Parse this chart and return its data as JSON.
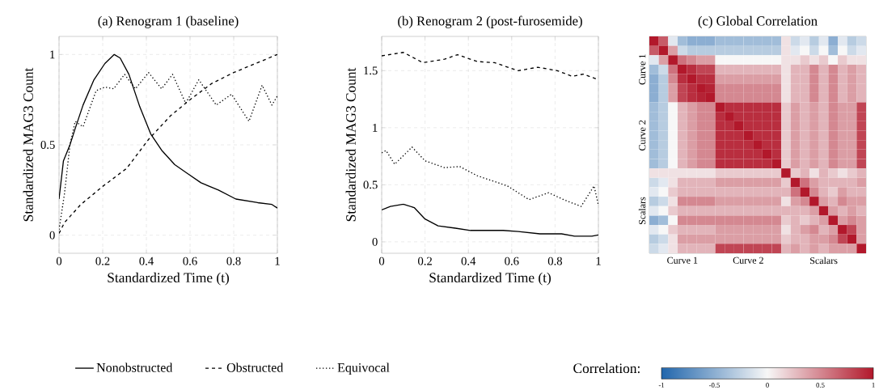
{
  "chart_data": [
    {
      "type": "line",
      "title": "(a) Renogram 1 (baseline)",
      "xlabel": "Standardized Time (t)",
      "ylabel": "Standardized MAG3 Count",
      "xlim": [
        0,
        1
      ],
      "ylim": [
        -0.1,
        1.1
      ],
      "xticks": [
        0,
        0.2,
        0.4,
        0.6,
        0.8,
        1
      ],
      "yticks": [
        0,
        0.5,
        1
      ],
      "grid": true,
      "legend": "bottom",
      "marker": "none",
      "series": [
        {
          "name": "Nonobstructed",
          "color": "#000000",
          "line_style": "solid",
          "x": [
            0,
            0.02,
            0.05,
            0.074,
            0.11,
            0.16,
            0.21,
            0.253,
            0.28,
            0.32,
            0.37,
            0.42,
            0.47,
            0.53,
            0.59,
            0.65,
            0.73,
            0.81,
            0.91,
            0.975,
            1
          ],
          "values": [
            0.2,
            0.41,
            0.5,
            0.59,
            0.72,
            0.86,
            0.95,
            1.0,
            0.98,
            0.89,
            0.71,
            0.56,
            0.47,
            0.39,
            0.34,
            0.29,
            0.25,
            0.2,
            0.18,
            0.17,
            0.15
          ]
        },
        {
          "name": "Obstructed",
          "color": "#000000",
          "line_style": "dashed",
          "x": [
            0,
            0.025,
            0.1,
            0.2,
            0.31,
            0.41,
            0.51,
            0.6,
            0.7,
            0.8,
            0.9,
            1
          ],
          "values": [
            0.01,
            0.07,
            0.17,
            0.27,
            0.37,
            0.53,
            0.66,
            0.75,
            0.84,
            0.9,
            0.95,
            1.0
          ]
        },
        {
          "name": "Equivocal",
          "color": "#000000",
          "line_style": "dotted",
          "x": [
            0,
            0.025,
            0.05,
            0.074,
            0.11,
            0.17,
            0.21,
            0.25,
            0.3,
            0.35,
            0.41,
            0.47,
            0.52,
            0.58,
            0.64,
            0.72,
            0.79,
            0.87,
            0.93,
            0.975,
            1
          ],
          "values": [
            0.03,
            0.23,
            0.5,
            0.63,
            0.6,
            0.8,
            0.82,
            0.81,
            0.89,
            0.81,
            0.9,
            0.81,
            0.89,
            0.73,
            0.86,
            0.72,
            0.78,
            0.63,
            0.83,
            0.72,
            0.77
          ]
        }
      ]
    },
    {
      "type": "line",
      "title": "(b) Renogram 2 (post-furosemide)",
      "xlabel": "Standardized Time (t)",
      "ylabel": "Standardized MAG3 Count",
      "xlim": [
        0,
        1
      ],
      "ylim": [
        -0.1,
        1.8
      ],
      "xticks": [
        0,
        0.2,
        0.4,
        0.6,
        0.8,
        1
      ],
      "yticks": [
        0,
        0.5,
        1,
        1.5
      ],
      "grid": true,
      "marker": "none",
      "series": [
        {
          "color": "#000000",
          "line_style": "solid",
          "x": [
            0,
            0.04,
            0.1,
            0.15,
            0.2,
            0.26,
            0.34,
            0.41,
            0.48,
            0.56,
            0.63,
            0.73,
            0.83,
            0.89,
            0.97,
            1
          ],
          "values": [
            0.28,
            0.31,
            0.33,
            0.3,
            0.2,
            0.14,
            0.12,
            0.1,
            0.1,
            0.1,
            0.09,
            0.07,
            0.07,
            0.05,
            0.05,
            0.06
          ]
        },
        {
          "color": "#000000",
          "line_style": "dashed",
          "x": [
            0,
            0.1,
            0.19,
            0.29,
            0.35,
            0.44,
            0.52,
            0.63,
            0.72,
            0.81,
            0.88,
            0.93,
            1
          ],
          "values": [
            1.63,
            1.66,
            1.57,
            1.6,
            1.64,
            1.58,
            1.57,
            1.5,
            1.53,
            1.5,
            1.45,
            1.47,
            1.42
          ]
        },
        {
          "color": "#000000",
          "line_style": "dotted",
          "x": [
            0,
            0.02,
            0.06,
            0.14,
            0.2,
            0.29,
            0.36,
            0.44,
            0.58,
            0.68,
            0.77,
            0.84,
            0.92,
            0.98,
            1
          ],
          "values": [
            0.78,
            0.8,
            0.68,
            0.83,
            0.71,
            0.65,
            0.66,
            0.58,
            0.49,
            0.37,
            0.43,
            0.37,
            0.31,
            0.49,
            0.32
          ]
        }
      ]
    },
    {
      "type": "heatmap",
      "title": "(c) Global Correlation",
      "clabel": "Correlation:",
      "clim": [
        -1,
        1
      ],
      "cticks": [
        -1,
        -0.5,
        0,
        0.5,
        1
      ],
      "categories": [
        null,
        null,
        null,
        "Curve 1",
        null,
        null,
        null,
        null,
        null,
        null,
        "Curve 2",
        null,
        null,
        null,
        null,
        null,
        null,
        null,
        "Scalars",
        null,
        null,
        null,
        null
      ],
      "y_categories": [
        null,
        null,
        null,
        "Curve 1",
        null,
        null,
        null,
        null,
        null,
        null,
        "Curve 2",
        null,
        null,
        null,
        null,
        null,
        null,
        null,
        "Scalars",
        null,
        null,
        null,
        null
      ],
      "cells": [
        [
          1,
          0.7,
          -0.1,
          -0.4,
          -0.5,
          -0.5,
          -0.5,
          -0.4,
          -0.4,
          -0.4,
          -0.4,
          -0.4,
          -0.4,
          -0.4,
          0.1,
          -0.2,
          -0.1,
          -0.3,
          -0.1,
          -0.5,
          -0.1,
          -0.3,
          -0.2
        ],
        [
          0.7,
          1,
          0.4,
          -0.2,
          -0.3,
          -0.3,
          -0.3,
          -0.3,
          -0.3,
          -0.3,
          -0.3,
          -0.3,
          -0.3,
          -0.3,
          0.1,
          -0.1,
          0,
          -0.2,
          0,
          -0.4,
          0,
          -0.2,
          -0.1
        ],
        [
          -0.1,
          0.4,
          1,
          0.6,
          0.5,
          0.4,
          0.4,
          0,
          0,
          0,
          0,
          0,
          0,
          0,
          0.1,
          0.1,
          0.2,
          0.1,
          0.2,
          0,
          0.2,
          0.1,
          0.1
        ],
        [
          -0.4,
          -0.2,
          0.6,
          1,
          0.9,
          0.8,
          0.8,
          0.3,
          0.3,
          0.3,
          0.3,
          0.3,
          0.3,
          0.3,
          0.1,
          0.3,
          0.3,
          0.5,
          0.3,
          0.5,
          0.3,
          0.4,
          0.3
        ],
        [
          -0.5,
          -0.3,
          0.5,
          0.9,
          1,
          0.9,
          0.9,
          0.4,
          0.4,
          0.4,
          0.4,
          0.4,
          0.4,
          0.4,
          0.1,
          0.3,
          0.3,
          0.5,
          0.3,
          0.5,
          0.3,
          0.4,
          0.3
        ],
        [
          -0.5,
          -0.3,
          0.4,
          0.8,
          0.9,
          1,
          0.95,
          0.5,
          0.5,
          0.5,
          0.5,
          0.5,
          0.5,
          0.5,
          0.1,
          0.3,
          0.3,
          0.5,
          0.3,
          0.5,
          0.3,
          0.4,
          0.3
        ],
        [
          -0.5,
          -0.3,
          0.4,
          0.8,
          0.9,
          0.95,
          1,
          0.5,
          0.5,
          0.5,
          0.5,
          0.5,
          0.5,
          0.5,
          0.1,
          0.3,
          0.3,
          0.5,
          0.3,
          0.5,
          0.3,
          0.4,
          0.3
        ],
        [
          -0.4,
          -0.3,
          0,
          0.3,
          0.4,
          0.5,
          0.5,
          1,
          0.9,
          0.9,
          0.9,
          0.9,
          0.9,
          0.9,
          0.2,
          0.4,
          0.3,
          0.4,
          0.3,
          0.5,
          0.4,
          0.4,
          0.8
        ],
        [
          -0.4,
          -0.3,
          0,
          0.3,
          0.4,
          0.5,
          0.5,
          0.9,
          1,
          0.9,
          0.9,
          0.9,
          0.9,
          0.9,
          0.2,
          0.4,
          0.3,
          0.4,
          0.3,
          0.5,
          0.4,
          0.4,
          0.8
        ],
        [
          -0.4,
          -0.3,
          0,
          0.3,
          0.4,
          0.5,
          0.5,
          0.9,
          0.9,
          1,
          0.9,
          0.9,
          0.9,
          0.9,
          0.2,
          0.4,
          0.3,
          0.4,
          0.3,
          0.5,
          0.4,
          0.4,
          0.8
        ],
        [
          -0.4,
          -0.3,
          0,
          0.3,
          0.4,
          0.5,
          0.5,
          0.9,
          0.9,
          0.9,
          1,
          0.9,
          0.9,
          0.9,
          0.2,
          0.4,
          0.3,
          0.4,
          0.3,
          0.5,
          0.4,
          0.4,
          0.8
        ],
        [
          -0.4,
          -0.3,
          0,
          0.3,
          0.4,
          0.5,
          0.5,
          0.9,
          0.9,
          0.9,
          0.9,
          1,
          0.9,
          0.9,
          0.2,
          0.4,
          0.3,
          0.4,
          0.3,
          0.5,
          0.4,
          0.4,
          0.8
        ],
        [
          -0.4,
          -0.3,
          0,
          0.3,
          0.4,
          0.5,
          0.5,
          0.9,
          0.9,
          0.9,
          0.9,
          0.9,
          1,
          0.9,
          0.2,
          0.4,
          0.3,
          0.4,
          0.3,
          0.5,
          0.4,
          0.4,
          0.8
        ],
        [
          -0.4,
          -0.3,
          0,
          0.3,
          0.4,
          0.5,
          0.5,
          0.9,
          0.9,
          0.9,
          0.9,
          0.9,
          0.9,
          1,
          0.2,
          0.4,
          0.3,
          0.4,
          0.3,
          0.5,
          0.4,
          0.4,
          0.8
        ],
        [
          0.1,
          0.1,
          0.1,
          0.1,
          0.1,
          0.1,
          0.1,
          0.2,
          0.2,
          0.2,
          0.2,
          0.2,
          0.2,
          0.2,
          1,
          0.2,
          0.3,
          0.1,
          0.3,
          0.2,
          0.1,
          0.2,
          0.3
        ],
        [
          -0.2,
          -0.1,
          0.1,
          0.3,
          0.3,
          0.3,
          0.3,
          0.4,
          0.4,
          0.4,
          0.4,
          0.4,
          0.4,
          0.4,
          0.2,
          1,
          0.6,
          0.4,
          0.3,
          0.3,
          0.3,
          0.3,
          0.4
        ],
        [
          -0.1,
          0,
          0.2,
          0.3,
          0.3,
          0.3,
          0.3,
          0.3,
          0.3,
          0.3,
          0.3,
          0.3,
          0.3,
          0.3,
          0.3,
          0.6,
          1,
          0.5,
          0.3,
          0.2,
          0.4,
          0.3,
          0.3
        ],
        [
          -0.3,
          -0.2,
          0.1,
          0.5,
          0.5,
          0.5,
          0.5,
          0.4,
          0.4,
          0.4,
          0.4,
          0.4,
          0.4,
          0.4,
          0.1,
          0.4,
          0.5,
          1,
          0.4,
          0.3,
          0.5,
          0.4,
          0.4
        ],
        [
          -0.1,
          0,
          0.2,
          0.3,
          0.3,
          0.3,
          0.3,
          0.3,
          0.3,
          0.3,
          0.3,
          0.3,
          0.3,
          0.3,
          0.3,
          0.3,
          0.3,
          0.4,
          1,
          0.4,
          0.3,
          0.4,
          0.3
        ],
        [
          -0.5,
          -0.4,
          0,
          0.5,
          0.5,
          0.5,
          0.5,
          0.5,
          0.5,
          0.5,
          0.5,
          0.5,
          0.5,
          0.5,
          0.2,
          0.3,
          0.2,
          0.3,
          0.4,
          1,
          0.4,
          0.5,
          0.4
        ],
        [
          -0.1,
          0,
          0.2,
          0.3,
          0.3,
          0.3,
          0.3,
          0.4,
          0.4,
          0.4,
          0.4,
          0.4,
          0.4,
          0.4,
          0.1,
          0.3,
          0.4,
          0.5,
          0.3,
          0.4,
          1,
          0.8,
          0.4
        ],
        [
          -0.3,
          -0.2,
          0.1,
          0.4,
          0.4,
          0.4,
          0.4,
          0.4,
          0.4,
          0.4,
          0.4,
          0.4,
          0.4,
          0.4,
          0.2,
          0.3,
          0.3,
          0.4,
          0.4,
          0.5,
          0.8,
          1,
          0.4
        ],
        [
          -0.2,
          -0.1,
          0.1,
          0.3,
          0.3,
          0.3,
          0.3,
          0.8,
          0.8,
          0.8,
          0.8,
          0.8,
          0.8,
          0.8,
          0.3,
          0.4,
          0.3,
          0.4,
          0.3,
          0.4,
          0.4,
          0.4,
          1
        ]
      ]
    }
  ]
}
